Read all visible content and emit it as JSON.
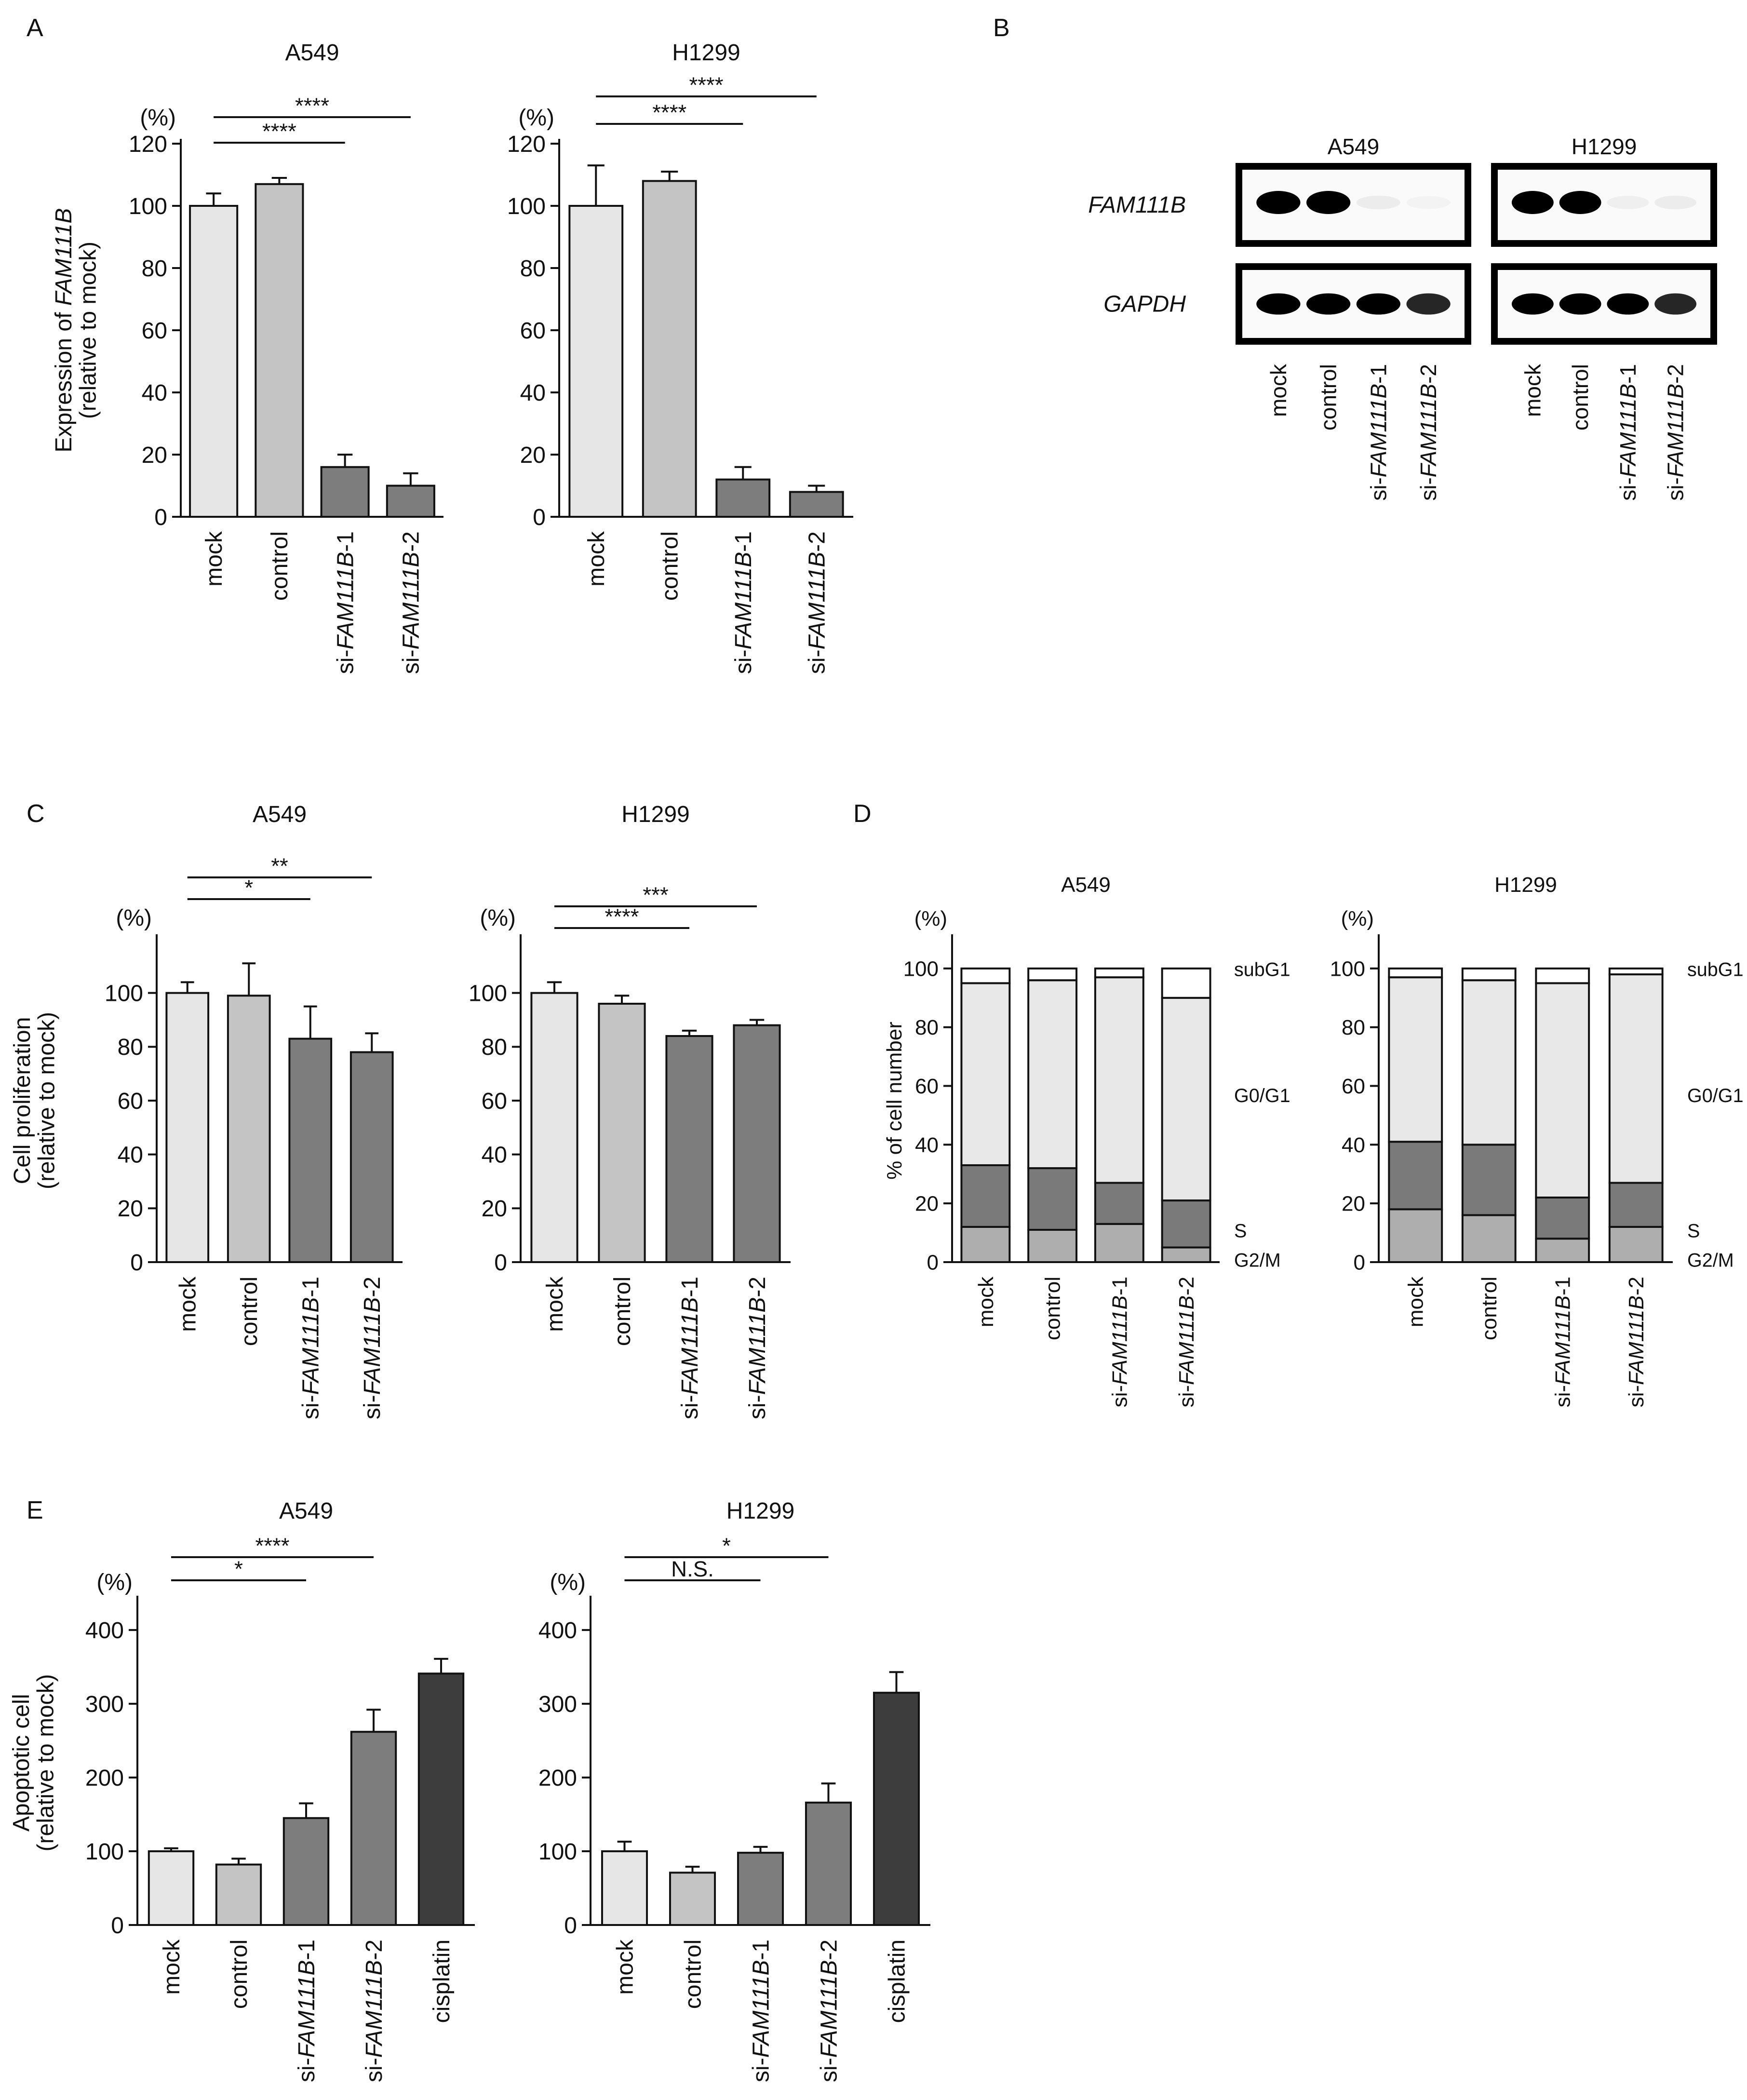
{
  "panels": {
    "A": "A",
    "B": "B",
    "C": "C",
    "D": "D",
    "E": "E"
  },
  "colors": {
    "mock": "#e6e6e6",
    "control": "#c4c4c4",
    "si1": "#7d7d7d",
    "si2": "#7d7d7d",
    "cisplatin": "#3d3d3d",
    "subG1": "#ffffff",
    "G0G1": "#e8e8e8",
    "S": "#7a7a7a",
    "G2M": "#aeaeae",
    "axis": "#111111"
  },
  "blot": {
    "cells": [
      "A549",
      "H1299"
    ],
    "rows": [
      "FAM111B",
      "GAPDH"
    ],
    "lanes": [
      {
        "prefix": "",
        "gene": "",
        "suffix": "mock"
      },
      {
        "prefix": "",
        "gene": "",
        "suffix": "control"
      },
      {
        "prefix": "si-",
        "gene": "FAM111B",
        "suffix": "-1"
      },
      {
        "prefix": "si-",
        "gene": "FAM111B",
        "suffix": "-2"
      }
    ]
  },
  "chart_data": [
    {
      "id": "A-A549",
      "panel": "A",
      "type": "bar",
      "title": "A549",
      "categories": [
        "mock",
        "control",
        "si-FAM111B-1",
        "si-FAM111B-2"
      ],
      "values": [
        100,
        107,
        16,
        10
      ],
      "errors": [
        4,
        2,
        4,
        4
      ],
      "ylim": [
        0,
        120
      ],
      "yticks": [
        0,
        20,
        40,
        60,
        80,
        100,
        120
      ],
      "yunit": "(%)",
      "ylabel_lines": [
        "Expression of FAM111B",
        "(relative to mock)"
      ],
      "significance": [
        {
          "from": 0,
          "to": 2,
          "label": "****"
        },
        {
          "from": 0,
          "to": 3,
          "label": "****"
        }
      ]
    },
    {
      "id": "A-H1299",
      "panel": "A",
      "type": "bar",
      "title": "H1299",
      "categories": [
        "mock",
        "control",
        "si-FAM111B-1",
        "si-FAM111B-2"
      ],
      "values": [
        100,
        108,
        12,
        8
      ],
      "errors": [
        13,
        3,
        4,
        2
      ],
      "ylim": [
        0,
        120
      ],
      "yticks": [
        0,
        20,
        40,
        60,
        80,
        100,
        120
      ],
      "yunit": "(%)",
      "significance": [
        {
          "from": 0,
          "to": 2,
          "label": "****"
        },
        {
          "from": 0,
          "to": 3,
          "label": "****"
        }
      ]
    },
    {
      "id": "C-A549",
      "panel": "C",
      "type": "bar",
      "title": "A549",
      "categories": [
        "mock",
        "control",
        "si-FAM111B-1",
        "si-FAM111B-2"
      ],
      "values": [
        100,
        99,
        83,
        78
      ],
      "errors": [
        4,
        12,
        12,
        7
      ],
      "ylim": [
        0,
        120
      ],
      "yticks": [
        0,
        20,
        40,
        60,
        80,
        100
      ],
      "yunit": "(%)",
      "ylabel_lines": [
        "Cell proliferation",
        "(relative to mock)"
      ],
      "significance": [
        {
          "from": 0,
          "to": 2,
          "label": "*"
        },
        {
          "from": 0,
          "to": 3,
          "label": "**"
        }
      ]
    },
    {
      "id": "C-H1299",
      "panel": "C",
      "type": "bar",
      "title": "H1299",
      "categories": [
        "mock",
        "control",
        "si-FAM111B-1",
        "si-FAM111B-2"
      ],
      "values": [
        100,
        96,
        84,
        88
      ],
      "errors": [
        4,
        3,
        2,
        2
      ],
      "ylim": [
        0,
        120
      ],
      "yticks": [
        0,
        20,
        40,
        60,
        80,
        100
      ],
      "yunit": "(%)",
      "significance": [
        {
          "from": 0,
          "to": 2,
          "label": "****"
        },
        {
          "from": 0,
          "to": 3,
          "label": "***"
        }
      ]
    },
    {
      "id": "D-A549",
      "panel": "D",
      "type": "stacked-bar",
      "title": "A549",
      "categories": [
        "mock",
        "control",
        "si-FAM111B-1",
        "si-FAM111B-2"
      ],
      "series": [
        {
          "name": "G2/M",
          "values": [
            12,
            11,
            13,
            5
          ]
        },
        {
          "name": "S",
          "values": [
            21,
            21,
            14,
            16
          ]
        },
        {
          "name": "G0/G1",
          "values": [
            62,
            64,
            70,
            69
          ]
        },
        {
          "name": "subG1",
          "values": [
            5,
            4,
            3,
            10
          ]
        }
      ],
      "ylim": [
        0,
        110
      ],
      "yticks": [
        0,
        20,
        40,
        60,
        80,
        100
      ],
      "yunit": "(%)",
      "ylabel": "% of cell number"
    },
    {
      "id": "D-H1299",
      "panel": "D",
      "type": "stacked-bar",
      "title": "H1299",
      "categories": [
        "mock",
        "control",
        "si-FAM111B-1",
        "si-FAM111B-2"
      ],
      "series": [
        {
          "name": "G2/M",
          "values": [
            18,
            16,
            8,
            12
          ]
        },
        {
          "name": "S",
          "values": [
            23,
            24,
            14,
            15
          ]
        },
        {
          "name": "G0/G1",
          "values": [
            56,
            56,
            73,
            71
          ]
        },
        {
          "name": "subG1",
          "values": [
            3,
            4,
            5,
            2
          ]
        }
      ],
      "ylim": [
        0,
        110
      ],
      "yticks": [
        0,
        20,
        40,
        60,
        80,
        100
      ],
      "yunit": "(%)"
    },
    {
      "id": "E-A549",
      "panel": "E",
      "type": "bar",
      "title": "A549",
      "categories": [
        "mock",
        "control",
        "si-FAM111B-1",
        "si-FAM111B-2",
        "cisplatin"
      ],
      "values": [
        100,
        82,
        145,
        262,
        341
      ],
      "errors": [
        4,
        8,
        20,
        30,
        20
      ],
      "ylim": [
        0,
        440
      ],
      "yticks": [
        0,
        100,
        200,
        300,
        400
      ],
      "yunit": "(%)",
      "ylabel_lines": [
        "Apoptotic cell",
        "(relative to mock)"
      ],
      "significance": [
        {
          "from": 0,
          "to": 2,
          "label": "*"
        },
        {
          "from": 0,
          "to": 3,
          "label": "****"
        }
      ]
    },
    {
      "id": "E-H1299",
      "panel": "E",
      "type": "bar",
      "title": "H1299",
      "categories": [
        "mock",
        "control",
        "si-FAM111B-1",
        "si-FAM111B-2",
        "cisplatin"
      ],
      "values": [
        100,
        71,
        98,
        166,
        315
      ],
      "errors": [
        13,
        8,
        8,
        26,
        28
      ],
      "ylim": [
        0,
        440
      ],
      "yticks": [
        0,
        100,
        200,
        300,
        400
      ],
      "yunit": "(%)",
      "significance": [
        {
          "from": 0,
          "to": 2,
          "label": "N.S."
        },
        {
          "from": 0,
          "to": 3,
          "label": "*"
        }
      ]
    }
  ]
}
